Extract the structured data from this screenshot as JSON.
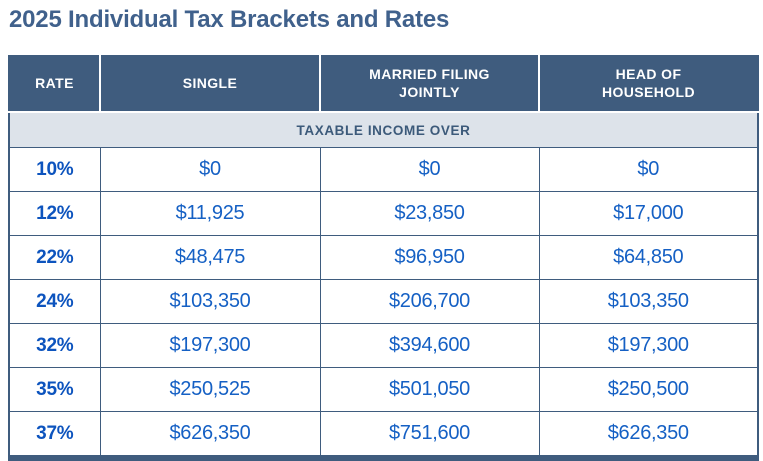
{
  "title": "2025 Individual Tax Brackets and Rates",
  "colors": {
    "title_text": "#40618c",
    "header_bg": "#3f5c7e",
    "header_text": "#ffffff",
    "subheader_bg": "#dde3ea",
    "subheader_text": "#3c5a7a",
    "value_text": "#1560c4",
    "rate_text": "#0d54be",
    "border": "#3f5c7e",
    "page_bg": "#ffffff"
  },
  "table": {
    "headers": {
      "rate": "RATE",
      "single": "SINGLE",
      "married": [
        "MARRIED FILING",
        "JOINTLY"
      ],
      "hoh": [
        "HEAD OF",
        "HOUSEHOLD"
      ]
    },
    "subheader": "TAXABLE INCOME OVER",
    "rows": [
      {
        "rate": "10%",
        "single": "$0",
        "married": "$0",
        "hoh": "$0"
      },
      {
        "rate": "12%",
        "single": "$11,925",
        "married": "$23,850",
        "hoh": "$17,000"
      },
      {
        "rate": "22%",
        "single": "$48,475",
        "married": "$96,950",
        "hoh": "$64,850"
      },
      {
        "rate": "24%",
        "single": "$103,350",
        "married": "$206,700",
        "hoh": "$103,350"
      },
      {
        "rate": "32%",
        "single": "$197,300",
        "married": "$394,600",
        "hoh": "$197,300"
      },
      {
        "rate": "35%",
        "single": "$250,525",
        "married": "$501,050",
        "hoh": "$250,500"
      },
      {
        "rate": "37%",
        "single": "$626,350",
        "married": "$751,600",
        "hoh": "$626,350"
      }
    ]
  },
  "chart_data": {
    "type": "table",
    "title": "2025 Individual Tax Brackets and Rates",
    "columns": [
      "Rate",
      "Single",
      "Married Filing Jointly",
      "Head of Household"
    ],
    "subheader": "Taxable income over",
    "rows": [
      [
        "10%",
        "$0",
        "$0",
        "$0"
      ],
      [
        "12%",
        "$11,925",
        "$23,850",
        "$17,000"
      ],
      [
        "22%",
        "$48,475",
        "$96,950",
        "$64,850"
      ],
      [
        "24%",
        "$103,350",
        "$206,700",
        "$103,350"
      ],
      [
        "32%",
        "$197,300",
        "$394,600",
        "$197,300"
      ],
      [
        "35%",
        "$250,525",
        "$501,050",
        "$250,500"
      ],
      [
        "37%",
        "$626,350",
        "$751,600",
        "$626,350"
      ]
    ]
  }
}
